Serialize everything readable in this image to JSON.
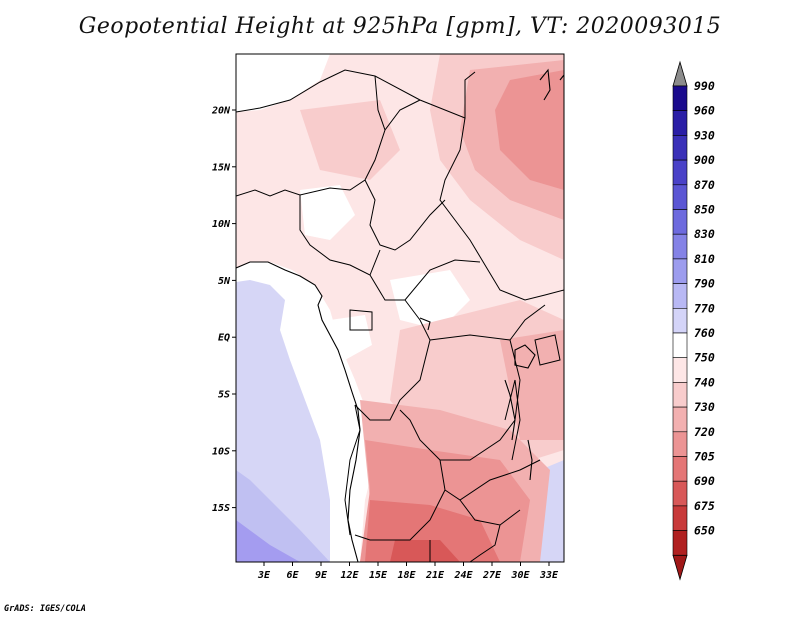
{
  "title": "Geopotential Height at 925hPa [gpm], VT: 2020093015",
  "footer": "GrADS: IGES/COLA",
  "map": {
    "x_ticks": [
      "3E",
      "6E",
      "9E",
      "12E",
      "15E",
      "18E",
      "21E",
      "24E",
      "27E",
      "30E",
      "33E"
    ],
    "y_ticks": [
      "20N",
      "15N",
      "10N",
      "5N",
      "EQ",
      "5S",
      "10S",
      "15S"
    ]
  },
  "colorbar": {
    "levels": [
      "990",
      "960",
      "930",
      "900",
      "870",
      "850",
      "830",
      "810",
      "790",
      "770",
      "760",
      "750",
      "740",
      "730",
      "720",
      "705",
      "690",
      "675",
      "650"
    ],
    "colors": [
      "#1a0a8c",
      "#2a1ea6",
      "#3a30b8",
      "#4a42c8",
      "#5b56d4",
      "#6d6ade",
      "#8482e6",
      "#9c9cee",
      "#b8b8f4",
      "#d4d4f8",
      "#ffffff",
      "#fde6e6",
      "#f8cccc",
      "#f2b0b0",
      "#ec9494",
      "#e47676",
      "#d85858",
      "#c83a3a",
      "#b02020"
    ],
    "top_arrow_color": "#8c8c8c",
    "bottom_arrow_color": "#a01818"
  },
  "colors": {
    "ocean_light": "#d6d6f6",
    "ocean_mid": "#c0c0f2",
    "ocean_deep": "#a49cf0",
    "land_white": "#ffffff",
    "land_pale": "#fde6e6",
    "land_pink": "#f8cccc",
    "land_rose": "#f2b0b0",
    "land_red": "#ec9494",
    "land_dark": "#e47676",
    "land_deep": "#d85858",
    "border": "#000000"
  }
}
